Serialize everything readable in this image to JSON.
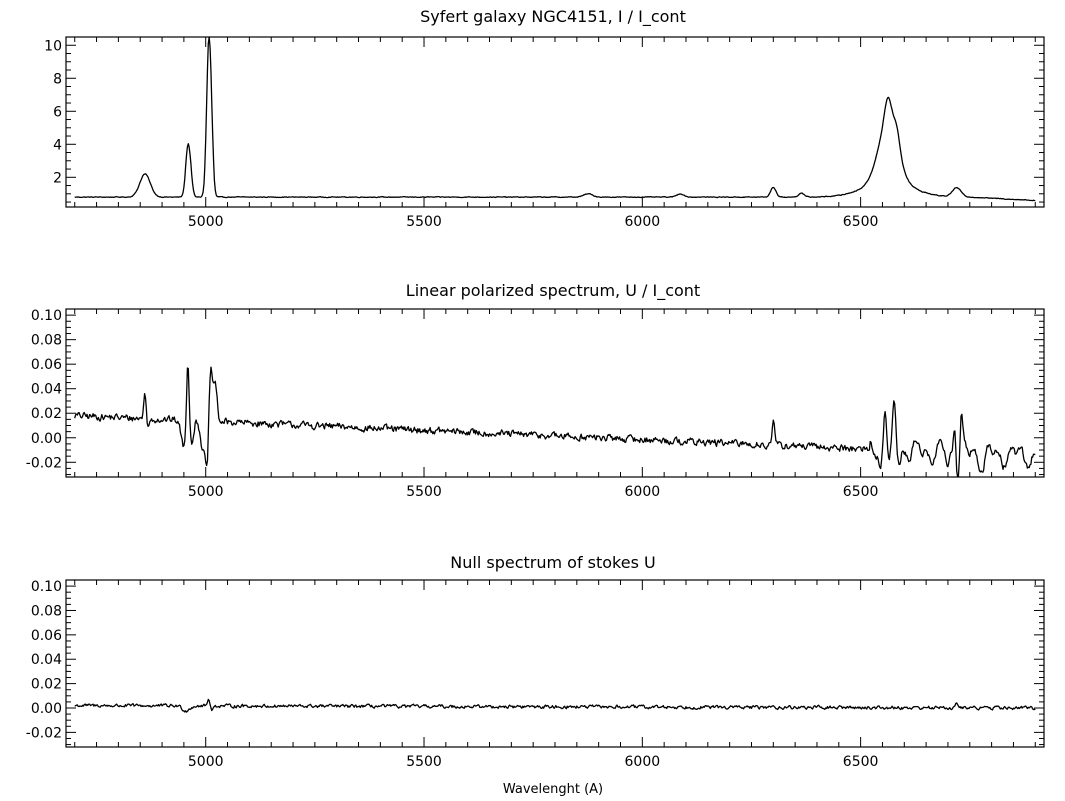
{
  "chart_data": [
    {
      "type": "line",
      "title": "Syfert galaxy NGC4151,  I / I_cont",
      "xlabel": "",
      "ylabel": "",
      "xlim": [
        4680,
        6920
      ],
      "ylim": [
        0.2,
        10.5
      ],
      "x_ticks": [
        5000,
        5500,
        6000,
        6500
      ],
      "x_tick_labels": [
        "5000",
        "5500",
        "6000",
        "6500"
      ],
      "y_ticks": [
        2,
        4,
        6,
        8,
        10
      ],
      "y_tick_labels": [
        "2",
        "4",
        "6",
        "8",
        "10"
      ],
      "y_minor_step": 0.5,
      "x_minor_step": 50,
      "grid": false,
      "series": [
        {
          "style": "intensity",
          "baseline": 0.8,
          "noise": 0.02,
          "features": [
            {
              "center": 4861,
              "amp": 1.4,
              "width": 12
            },
            {
              "center": 4959,
              "amp": 3.0,
              "width": 5
            },
            {
              "center": 4966,
              "amp": 0.9,
              "width": 4
            },
            {
              "center": 5007,
              "amp": 9.2,
              "width": 5
            },
            {
              "center": 5014,
              "amp": 2.2,
              "width": 4
            },
            {
              "center": 5876,
              "amp": 0.2,
              "width": 10
            },
            {
              "center": 6087,
              "amp": 0.2,
              "width": 8
            },
            {
              "center": 6300,
              "amp": 0.6,
              "width": 6
            },
            {
              "center": 6364,
              "amp": 0.25,
              "width": 6
            },
            {
              "center": 6563,
              "amp": 3.6,
              "width": 22
            },
            {
              "center": 6563,
              "amp": 1.5,
              "width": 8
            },
            {
              "center": 6583,
              "amp": 1.0,
              "width": 7
            },
            {
              "center": 6563,
              "amp": 0.9,
              "width": 55
            },
            {
              "center": 6720,
              "amp": 0.55,
              "width": 10
            }
          ],
          "tail_start": 6750,
          "tail_end_value": 0.6
        }
      ]
    },
    {
      "type": "line",
      "title": "Linear polarized spectrum,  U / I_cont",
      "xlabel": "",
      "ylabel": "",
      "xlim": [
        4680,
        6920
      ],
      "ylim": [
        -0.032,
        0.105
      ],
      "x_ticks": [
        5000,
        5500,
        6000,
        6500
      ],
      "x_tick_labels": [
        "5000",
        "5500",
        "6000",
        "6500"
      ],
      "y_ticks": [
        -0.02,
        0.0,
        0.02,
        0.04,
        0.06,
        0.08,
        0.1
      ],
      "y_tick_labels": [
        "-0.02",
        "0.00",
        "0.02",
        "0.04",
        "0.06",
        "0.08",
        "0.10"
      ],
      "y_minor_step": 0.005,
      "x_minor_step": 50,
      "grid": false,
      "series": [
        {
          "style": "polarized",
          "trend_start": 0.018,
          "trend_end": -0.015,
          "noise": 0.0025,
          "features": [
            {
              "center": 4861,
              "amp": 0.02,
              "width": 3
            },
            {
              "center": 4868,
              "amp": -0.008,
              "width": 3
            },
            {
              "center": 4950,
              "amp": -0.022,
              "width": 6
            },
            {
              "center": 4959,
              "amp": 0.055,
              "width": 3
            },
            {
              "center": 4968,
              "amp": -0.018,
              "width": 4
            },
            {
              "center": 4995,
              "amp": -0.025,
              "width": 6
            },
            {
              "center": 5003,
              "amp": -0.03,
              "width": 3
            },
            {
              "center": 5012,
              "amp": 0.04,
              "width": 4
            },
            {
              "center": 5022,
              "amp": 0.03,
              "width": 4
            },
            {
              "center": 6300,
              "amp": 0.018,
              "width": 3
            },
            {
              "center": 6545,
              "amp": -0.012,
              "width": 3
            },
            {
              "center": 6556,
              "amp": 0.038,
              "width": 3
            },
            {
              "center": 6566,
              "amp": -0.01,
              "width": 3
            },
            {
              "center": 6577,
              "amp": 0.036,
              "width": 3
            },
            {
              "center": 6588,
              "amp": -0.008,
              "width": 3
            },
            {
              "center": 6700,
              "amp": -0.014,
              "width": 3
            },
            {
              "center": 6716,
              "amp": 0.03,
              "width": 3
            },
            {
              "center": 6722,
              "amp": -0.022,
              "width": 3
            },
            {
              "center": 6731,
              "amp": 0.028,
              "width": 3
            },
            {
              "center": 6780,
              "amp": -0.01,
              "width": 4
            }
          ],
          "red_wiggle_start": 6520,
          "red_wiggle_amp": 0.006
        }
      ]
    },
    {
      "type": "line",
      "title": "Null spectrum of stokes U",
      "xlabel": "Wavelenght (A)",
      "ylabel": "",
      "xlim": [
        4680,
        6920
      ],
      "ylim": [
        -0.032,
        0.105
      ],
      "x_ticks": [
        5000,
        5500,
        6000,
        6500
      ],
      "x_tick_labels": [
        "5000",
        "5500",
        "6000",
        "6500"
      ],
      "y_ticks": [
        -0.02,
        0.0,
        0.02,
        0.04,
        0.06,
        0.08,
        0.1
      ],
      "y_tick_labels": [
        "-0.02",
        "0.00",
        "0.02",
        "0.04",
        "0.06",
        "0.08",
        "0.10"
      ],
      "y_minor_step": 0.005,
      "x_minor_step": 50,
      "grid": false,
      "series": [
        {
          "style": "null",
          "trend_start": 0.002,
          "trend_end": 0.0,
          "noise": 0.0012,
          "features": [
            {
              "center": 4955,
              "amp": -0.004,
              "width": 8
            },
            {
              "center": 5007,
              "amp": 0.005,
              "width": 3
            },
            {
              "center": 5015,
              "amp": -0.003,
              "width": 3
            },
            {
              "center": 6720,
              "amp": 0.003,
              "width": 3
            }
          ]
        }
      ]
    }
  ]
}
